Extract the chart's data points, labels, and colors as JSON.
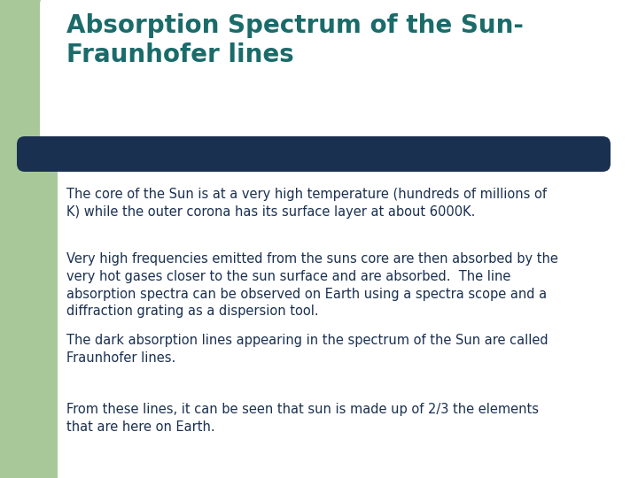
{
  "title_line1": "Absorption Spectrum of the Sun-",
  "title_line2": "Fraunhofer lines",
  "title_color": "#1a6b6a",
  "background_color": "#ffffff",
  "left_panel_color": "#a8c89a",
  "divider_color": "#1a3050",
  "body_text_color": "#1a3050",
  "paragraph1": "The core of the Sun is at a very high temperature (hundreds of millions of\nK) while the outer corona has its surface layer at about 6000K.",
  "paragraph2": "Very high frequencies emitted from the suns core are then absorbed by the\nvery hot gases closer to the sun surface and are absorbed.  The line\nabsorption spectra can be observed on Earth using a spectra scope and a\ndiffraction grating as a dispersion tool.",
  "paragraph3": "The dark absorption lines appearing in the spectrum of the Sun are called\nFraunhofer lines.",
  "paragraph4": "From these lines, it can be seen that sun is made up of 2/3 the elements\nthat are here on Earth.",
  "title_fontsize": 20,
  "body_fontsize": 10.5
}
